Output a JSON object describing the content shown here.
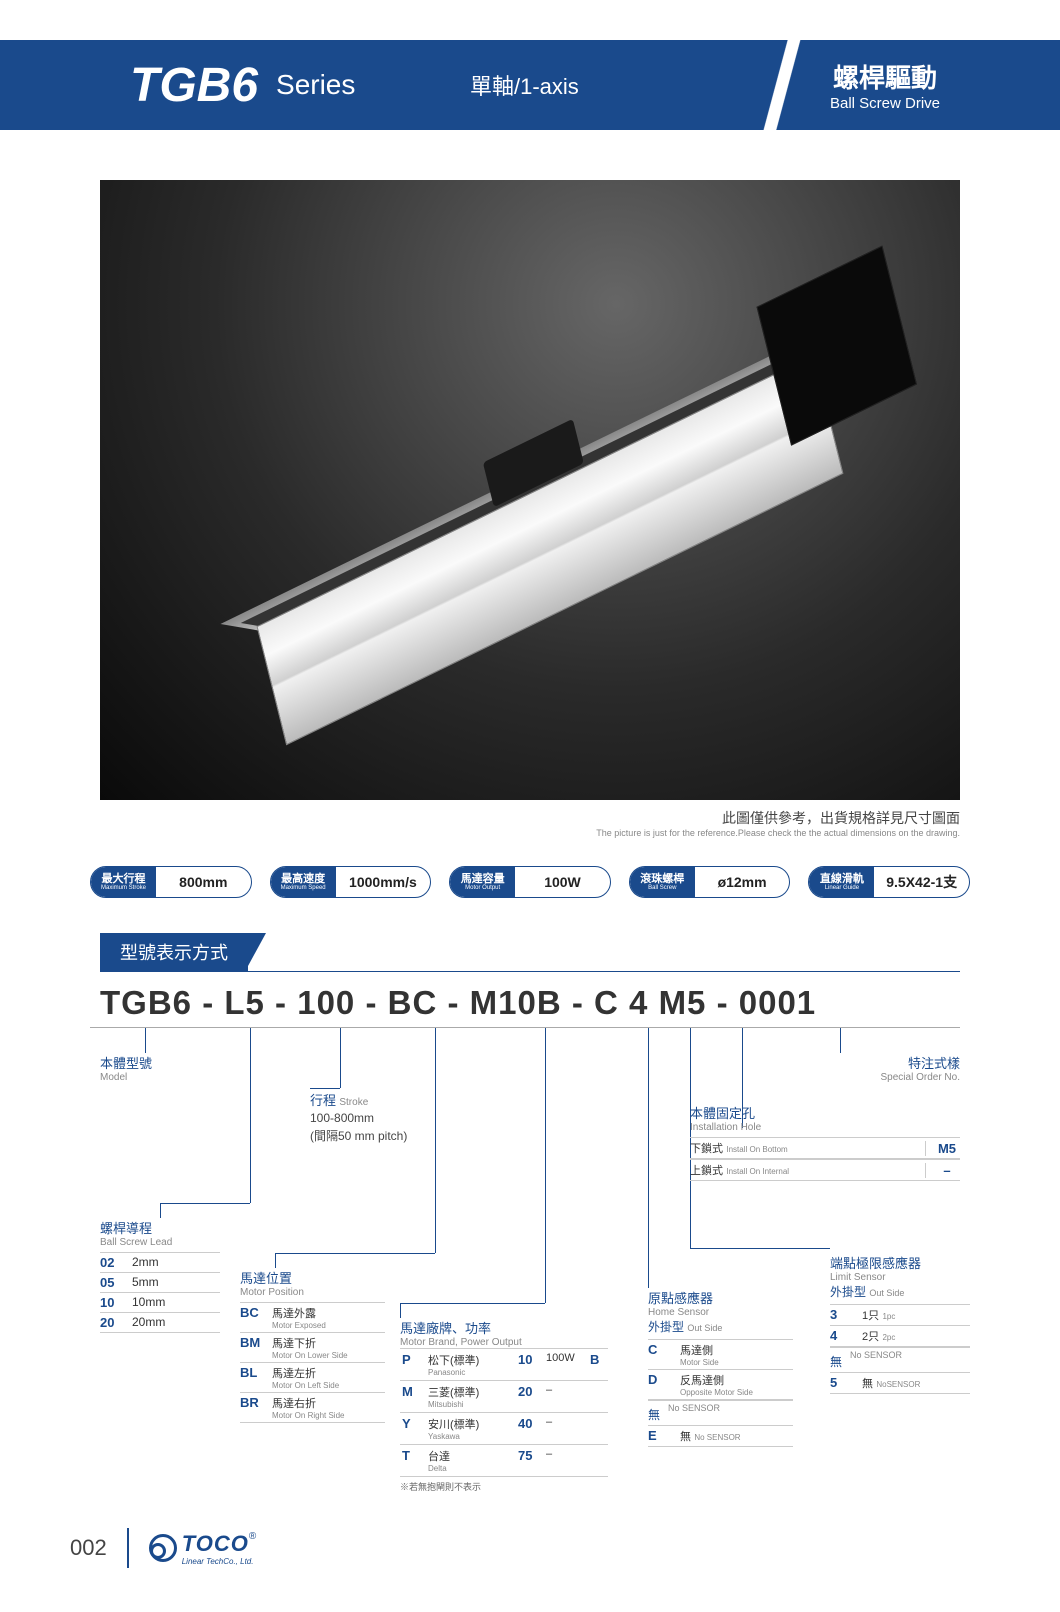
{
  "header": {
    "title": "TGB6",
    "subtitle": "Series",
    "axis_label": "單軸/1-axis",
    "drive_cn": "螺桿驅動",
    "drive_en": "Ball Screw Drive"
  },
  "image_caption": {
    "cn": "此圖僅供參考，出貨規格詳見尺寸圖面",
    "en": "The picture is just for the reference.Please check the the actual dimensions on the drawing."
  },
  "specs": [
    {
      "label_cn": "最大行程",
      "label_en": "Maximum Stroke",
      "value": "800mm"
    },
    {
      "label_cn": "最高速度",
      "label_en": "Maximum Speed",
      "value": "1000mm/s"
    },
    {
      "label_cn": "馬達容量",
      "label_en": "Motor Output",
      "value": "100W"
    },
    {
      "label_cn": "滾珠螺桿",
      "label_en": "Ball Screw",
      "value": "ø12mm"
    },
    {
      "label_cn": "直線滑軌",
      "label_en": "Linear Guide",
      "value": "9.5X42-1支"
    }
  ],
  "section_title": "型號表示方式",
  "part_number": {
    "seg1": "TGB6",
    "seg2": "L5",
    "seg3": "100",
    "seg4": "BC",
    "seg5": "M10B",
    "seg6": "C",
    "seg7": "4",
    "seg8": "M5",
    "seg9": "0001",
    "sep": " - "
  },
  "breakdown": {
    "model": {
      "title_cn": "本體型號",
      "title_en": "Model"
    },
    "stroke": {
      "title_cn": "行程",
      "title_en": "Stroke",
      "range": "100-800mm",
      "pitch": "(間隔50 mm pitch)"
    },
    "lead": {
      "title_cn": "螺桿導程",
      "title_en": "Ball Screw Lead",
      "rows": [
        {
          "code": "02",
          "val": "2mm"
        },
        {
          "code": "05",
          "val": "5mm"
        },
        {
          "code": "10",
          "val": "10mm"
        },
        {
          "code": "20",
          "val": "20mm"
        }
      ]
    },
    "motor_pos": {
      "title_cn": "馬達位置",
      "title_en": "Motor Position",
      "rows": [
        {
          "code": "BC",
          "cn": "馬達外露",
          "en": "Motor Exposed"
        },
        {
          "code": "BM",
          "cn": "馬達下折",
          "en": "Motor On Lower Side"
        },
        {
          "code": "BL",
          "cn": "馬達左折",
          "en": "Motor On Left Side"
        },
        {
          "code": "BR",
          "cn": "馬達右折",
          "en": "Motor On Right Side"
        }
      ]
    },
    "motor_brand": {
      "title_cn": "馬達廠牌、功率",
      "title_en": "Motor Brand, Power Output",
      "rows": [
        {
          "code": "P",
          "cn": "松下(標準)",
          "en": "Panasonic",
          "w": "10",
          "out": "100W",
          "suf": "B"
        },
        {
          "code": "M",
          "cn": "三菱(標準)",
          "en": "Mitsubishi",
          "w": "20",
          "out": "–",
          "suf": ""
        },
        {
          "code": "Y",
          "cn": "安川(標準)",
          "en": "Yaskawa",
          "w": "40",
          "out": "–",
          "suf": ""
        },
        {
          "code": "T",
          "cn": "台達",
          "en": "Delta",
          "w": "75",
          "out": "–",
          "suf": ""
        }
      ],
      "footnote": "※若無抱閘則不表示"
    },
    "home_sensor": {
      "title_cn": "原點感應器",
      "title_en": "Home Sensor",
      "sub_cn": "外掛型",
      "sub_en": "Out Side",
      "rows": [
        {
          "code": "C",
          "cn": "馬達側",
          "en": "Motor Side"
        },
        {
          "code": "D",
          "cn": "反馬達側",
          "en": "Opposite Motor Side"
        }
      ],
      "none_cn": "無",
      "none_en": "No SENSOR",
      "none2_code": "E",
      "none2_cn": "無",
      "none2_en": "No SENSOR"
    },
    "install_hole": {
      "title_cn": "本體固定孔",
      "title_en": "Installation Hole",
      "rows": [
        {
          "cn": "下鎖式",
          "en": "Install On Bottom",
          "code": "M5"
        },
        {
          "cn": "上鎖式",
          "en": "Install On Internal",
          "code": "–"
        }
      ]
    },
    "limit_sensor": {
      "title_cn": "端點極限感應器",
      "title_en": "Limit Sensor",
      "sub_cn": "外掛型",
      "sub_en": "Out Side",
      "rows": [
        {
          "code": "3",
          "cn": "1只",
          "en": "1pc"
        },
        {
          "code": "4",
          "cn": "2只",
          "en": "2pc"
        }
      ],
      "none_cn": "無",
      "none_en": "No SENSOR",
      "none2_code": "5",
      "none2_cn": "無",
      "none2_en": "NoSENSOR"
    },
    "special": {
      "title_cn": "特注式樣",
      "title_en": "Special Order No."
    }
  },
  "footer": {
    "page": "002",
    "brand": "TOCO",
    "brand_sub": "Linear TechCo., Ltd."
  }
}
